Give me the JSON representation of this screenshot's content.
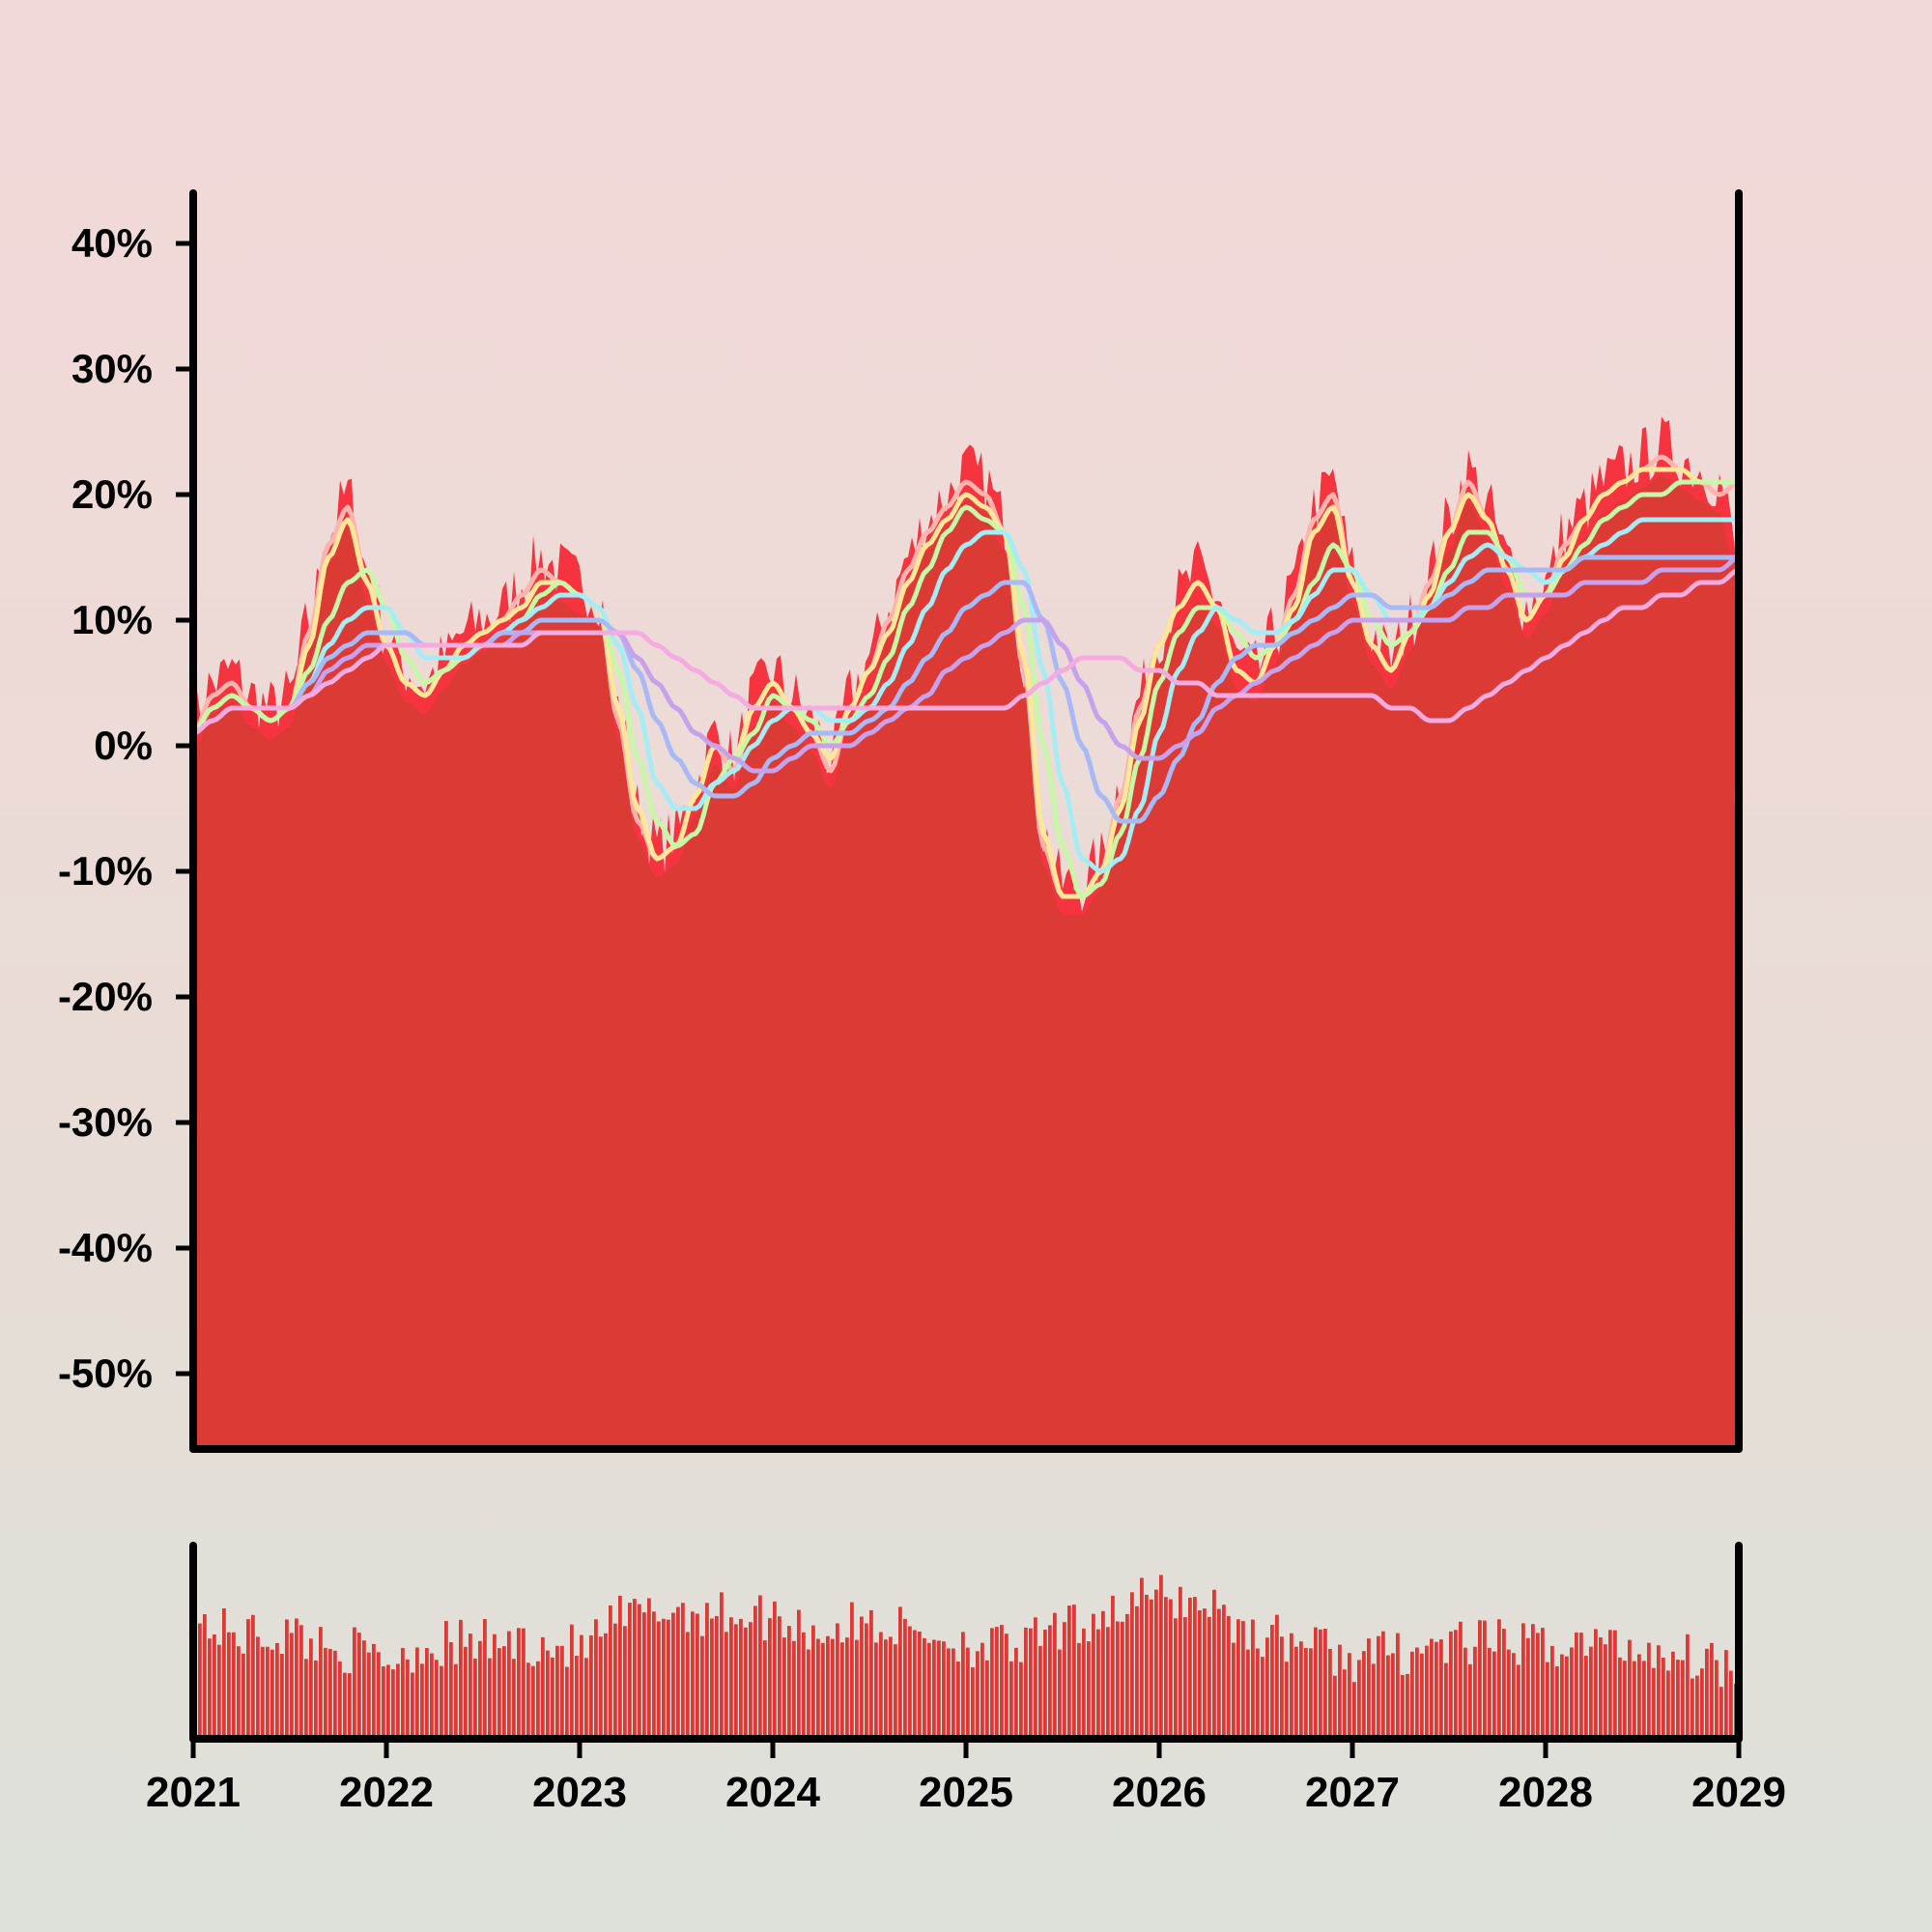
{
  "chart_data": [
    {
      "type": "area",
      "yticks": [
        {
          "value": 40,
          "label": "40%"
        },
        {
          "value": 30,
          "label": "30%"
        },
        {
          "value": 20,
          "label": "20%"
        },
        {
          "value": 10,
          "label": "10%"
        },
        {
          "value": 0,
          "label": "0%"
        },
        {
          "value": -10,
          "label": "-10%"
        },
        {
          "value": -20,
          "label": "-20%"
        },
        {
          "value": -30,
          "label": "-30%"
        },
        {
          "value": -40,
          "label": "-40%"
        },
        {
          "value": -50,
          "label": "-50%"
        }
      ],
      "ylim": [
        -56,
        44
      ],
      "xlim": [
        2021,
        2029
      ],
      "grid": false,
      "fill_color": "#db3a35",
      "spike_color": "#f5343f",
      "area": {
        "x": [
          2021.0,
          2021.1,
          2021.2,
          2021.3,
          2021.4,
          2021.5,
          2021.6,
          2021.7,
          2021.8,
          2021.9,
          2022.0,
          2022.1,
          2022.2,
          2022.3,
          2022.4,
          2022.5,
          2022.6,
          2022.7,
          2022.8,
          2022.9,
          2023.0,
          2023.1,
          2023.2,
          2023.3,
          2023.4,
          2023.5,
          2023.6,
          2023.7,
          2023.8,
          2023.9,
          2024.0,
          2024.1,
          2024.2,
          2024.3,
          2024.4,
          2024.5,
          2024.6,
          2024.7,
          2024.8,
          2024.9,
          2025.0,
          2025.1,
          2025.2,
          2025.3,
          2025.4,
          2025.5,
          2025.6,
          2025.7,
          2025.8,
          2025.9,
          2026.0,
          2026.1,
          2026.2,
          2026.3,
          2026.4,
          2026.5,
          2026.6,
          2026.7,
          2026.8,
          2026.9,
          2027.0,
          2027.1,
          2027.2,
          2027.3,
          2027.4,
          2027.5,
          2027.6,
          2027.7,
          2027.8,
          2027.9,
          2028.0,
          2028.1,
          2028.2,
          2028.3,
          2028.4,
          2028.5,
          2028.6,
          2028.7,
          2028.8,
          2028.9,
          2029.0
        ],
        "values": [
          1,
          4,
          5,
          3,
          2,
          3,
          9,
          16,
          19,
          13,
          8,
          5,
          4,
          6,
          8,
          9,
          10,
          12,
          14,
          13,
          12,
          11,
          2,
          -6,
          -9,
          -8,
          -4,
          0,
          -2,
          3,
          5,
          3,
          1,
          -2,
          3,
          6,
          10,
          14,
          17,
          19,
          21,
          20,
          17,
          6,
          -8,
          -12,
          -12,
          -10,
          -4,
          3,
          8,
          11,
          13,
          11,
          6,
          5,
          8,
          12,
          18,
          20,
          13,
          8,
          6,
          9,
          13,
          17,
          21,
          18,
          14,
          10,
          12,
          16,
          18,
          20,
          21,
          22,
          23,
          22,
          21,
          20,
          14
        ]
      },
      "series": [
        {
          "color": "#ffb3ad",
          "values": [
            1,
            4,
            5,
            3,
            2,
            3,
            9,
            16,
            19,
            13,
            8,
            5,
            4,
            6,
            8,
            9,
            10,
            12,
            14,
            13,
            12,
            11,
            2,
            -6,
            -9,
            -8,
            -4,
            0,
            -2,
            3,
            5,
            3,
            1,
            -2,
            3,
            6,
            10,
            14,
            17,
            19,
            21,
            20,
            17,
            6,
            -8,
            -12,
            -12,
            -10,
            -4,
            3,
            8,
            11,
            13,
            11,
            6,
            5,
            8,
            12,
            18,
            20,
            13,
            8,
            6,
            9,
            13,
            17,
            21,
            18,
            14,
            10,
            12,
            16,
            18,
            20,
            21,
            22,
            23,
            22,
            21,
            20,
            21
          ]
        },
        {
          "color": "#ffe79a",
          "values": [
            1,
            3,
            4,
            3,
            2,
            3,
            8,
            15,
            18,
            13,
            8,
            5,
            4,
            6,
            8,
            9,
            10,
            11,
            13,
            13,
            12,
            11,
            3,
            -5,
            -9,
            -8,
            -4,
            0,
            -1,
            3,
            5,
            3,
            1,
            -1,
            3,
            6,
            9,
            13,
            16,
            18,
            20,
            19,
            17,
            7,
            -7,
            -12,
            -12,
            -10,
            -5,
            2,
            8,
            11,
            13,
            11,
            6,
            5,
            8,
            11,
            17,
            19,
            13,
            8,
            6,
            9,
            12,
            17,
            20,
            18,
            14,
            10,
            12,
            15,
            18,
            20,
            21,
            22,
            22,
            22,
            21,
            21,
            21
          ]
        },
        {
          "color": "#c8f7a7",
          "values": [
            1,
            3,
            4,
            3,
            2,
            3,
            6,
            10,
            13,
            14,
            11,
            7,
            5,
            6,
            7,
            8,
            9,
            10,
            12,
            13,
            12,
            11,
            6,
            -1,
            -6,
            -8,
            -7,
            -3,
            -1,
            1,
            4,
            3,
            2,
            0,
            2,
            4,
            7,
            11,
            14,
            17,
            19,
            18,
            17,
            11,
            0,
            -8,
            -12,
            -11,
            -7,
            -1,
            5,
            9,
            11,
            11,
            9,
            7,
            8,
            10,
            13,
            16,
            14,
            10,
            8,
            9,
            11,
            14,
            17,
            17,
            15,
            12,
            12,
            14,
            16,
            18,
            19,
            20,
            20,
            21,
            21,
            21,
            21
          ]
        },
        {
          "color": "#a6ecf4",
          "values": [
            1,
            2,
            3,
            3,
            3,
            3,
            5,
            8,
            10,
            11,
            11,
            9,
            7,
            7,
            7,
            8,
            9,
            10,
            11,
            12,
            12,
            11,
            8,
            3,
            -3,
            -5,
            -5,
            -3,
            -2,
            0,
            2,
            3,
            3,
            2,
            2,
            3,
            5,
            8,
            11,
            14,
            16,
            17,
            17,
            14,
            6,
            -3,
            -9,
            -10,
            -9,
            -5,
            1,
            6,
            9,
            11,
            10,
            9,
            9,
            10,
            12,
            14,
            14,
            12,
            10,
            10,
            11,
            13,
            15,
            16,
            15,
            14,
            13,
            14,
            15,
            16,
            17,
            18,
            18,
            18,
            18,
            18,
            18
          ]
        },
        {
          "color": "#a8b9f5",
          "values": [
            1,
            2,
            3,
            3,
            3,
            3,
            5,
            7,
            8,
            9,
            9,
            9,
            8,
            8,
            8,
            8,
            9,
            9,
            10,
            10,
            10,
            10,
            9,
            6,
            2,
            -1,
            -3,
            -4,
            -4,
            -3,
            -1,
            0,
            1,
            1,
            1,
            2,
            3,
            5,
            7,
            9,
            11,
            12,
            13,
            13,
            10,
            5,
            0,
            -4,
            -6,
            -6,
            -4,
            -1,
            2,
            5,
            7,
            8,
            8,
            9,
            10,
            11,
            12,
            12,
            11,
            11,
            11,
            12,
            13,
            14,
            14,
            14,
            14,
            14,
            15,
            15,
            15,
            15,
            15,
            15,
            15,
            15,
            15
          ]
        },
        {
          "color": "#c6a2ec",
          "values": [
            1,
            2,
            3,
            3,
            3,
            3,
            4,
            6,
            7,
            8,
            8,
            8,
            8,
            8,
            8,
            8,
            8,
            9,
            9,
            9,
            9,
            9,
            9,
            7,
            5,
            3,
            1,
            0,
            -1,
            -2,
            -2,
            -1,
            0,
            0,
            0,
            1,
            2,
            3,
            4,
            6,
            7,
            8,
            9,
            10,
            10,
            8,
            5,
            2,
            0,
            -1,
            -1,
            0,
            1,
            3,
            4,
            5,
            6,
            7,
            8,
            9,
            10,
            10,
            10,
            10,
            10,
            10,
            11,
            11,
            12,
            12,
            12,
            12,
            13,
            13,
            13,
            13,
            14,
            14,
            14,
            14,
            15
          ]
        },
        {
          "color": "#f6abe0",
          "values": [
            1,
            2,
            3,
            3,
            3,
            3,
            4,
            5,
            6,
            7,
            8,
            8,
            8,
            8,
            8,
            8,
            8,
            8,
            9,
            9,
            9,
            9,
            9,
            9,
            8,
            7,
            6,
            5,
            4,
            3,
            3,
            3,
            3,
            3,
            3,
            3,
            3,
            3,
            3,
            3,
            3,
            3,
            3,
            4,
            5,
            6,
            7,
            7,
            7,
            6,
            6,
            5,
            5,
            4,
            4,
            4,
            4,
            4,
            4,
            4,
            4,
            4,
            3,
            3,
            2,
            2,
            3,
            4,
            5,
            6,
            7,
            8,
            9,
            10,
            11,
            11,
            12,
            12,
            13,
            13,
            14
          ]
        }
      ]
    },
    {
      "type": "bar",
      "fill_color": "#db3a35",
      "xticks": [
        {
          "value": 2021,
          "label": "2021"
        },
        {
          "value": 2022,
          "label": "2022"
        },
        {
          "value": 2023,
          "label": "2023"
        },
        {
          "value": 2024,
          "label": "2024"
        },
        {
          "value": 2025,
          "label": "2025"
        },
        {
          "value": 2026,
          "label": "2026"
        },
        {
          "value": 2027,
          "label": "2027"
        },
        {
          "value": 2028,
          "label": "2028"
        },
        {
          "value": 2029,
          "label": "2029"
        }
      ],
      "xlim": [
        2021,
        2029
      ],
      "ylim": [
        0,
        1
      ],
      "grid": false,
      "x": [
        2021.0,
        2021.25,
        2021.5,
        2021.75,
        2022.0,
        2022.25,
        2022.5,
        2022.75,
        2023.0,
        2023.25,
        2023.5,
        2023.75,
        2024.0,
        2024.25,
        2024.5,
        2024.75,
        2025.0,
        2025.25,
        2025.5,
        2025.75,
        2026.0,
        2026.25,
        2026.5,
        2026.75,
        2027.0,
        2027.25,
        2027.5,
        2027.75,
        2028.0,
        2028.25,
        2028.5,
        2028.75,
        2029.0
      ],
      "values": [
        0.66,
        0.6,
        0.6,
        0.52,
        0.46,
        0.54,
        0.55,
        0.55,
        0.52,
        0.7,
        0.74,
        0.72,
        0.7,
        0.62,
        0.66,
        0.62,
        0.55,
        0.52,
        0.62,
        0.74,
        0.82,
        0.78,
        0.6,
        0.56,
        0.46,
        0.5,
        0.54,
        0.55,
        0.54,
        0.55,
        0.52,
        0.48,
        0.42
      ]
    }
  ]
}
